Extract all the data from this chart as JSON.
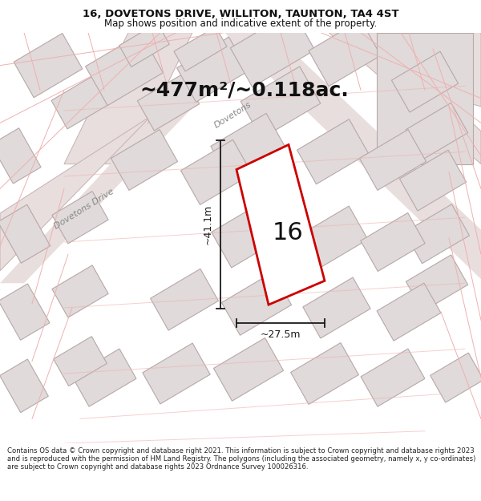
{
  "title_line1": "16, DOVETONS DRIVE, WILLITON, TAUNTON, TA4 4ST",
  "title_line2": "Map shows position and indicative extent of the property.",
  "area_text": "~477m²/~0.118ac.",
  "house_number": "16",
  "dim_width": "~27.5m",
  "dim_height": "~41.1m",
  "road_label_diag": "Dovetons Drive",
  "road_label_short": "Dovetons",
  "footer_text": "Contains OS data © Crown copyright and database right 2021. This information is subject to Crown copyright and database rights 2023 and is reproduced with the permission of HM Land Registry. The polygons (including the associated geometry, namely x, y co-ordinates) are subject to Crown copyright and database rights 2023 Ordnance Survey 100026316.",
  "bg_color": "#ffffff",
  "map_bg": "#f8f4f4",
  "road_fill": "#e8dede",
  "road_edge": "#c8b0b0",
  "bldg_fill": "#e0dada",
  "bldg_edge": "#b8a8a8",
  "plot_fill": "#ffffff",
  "plot_edge": "#cc0000",
  "dim_color": "#1a1a1a",
  "text_color": "#111111",
  "road_label_color": "#888888",
  "redline_color": "#f0b0b0",
  "title_fontsize": 9.5,
  "subtitle_fontsize": 8.5,
  "area_fontsize": 18,
  "num_fontsize": 22,
  "dim_fontsize": 9,
  "road_fontsize": 8,
  "footer_fontsize": 6.1
}
